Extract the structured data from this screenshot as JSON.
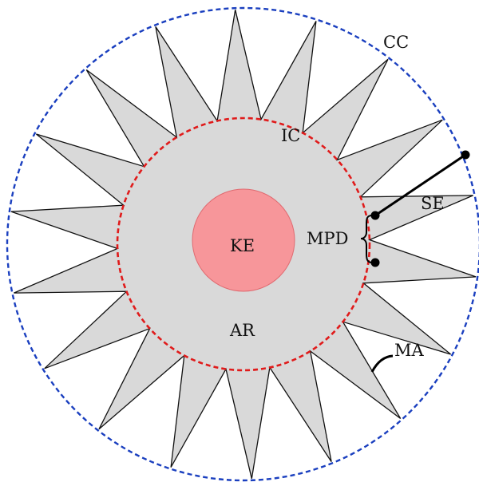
{
  "diagram": {
    "star": {
      "points": 18,
      "fill": "#d9d9d9",
      "stroke": "#111111"
    },
    "circumscribed_circle": {
      "label": "CC",
      "color": "#1a3fbf",
      "style": "dashed"
    },
    "inscribed_circle": {
      "label": "IC",
      "color": "#e01b1b",
      "style": "dashed"
    },
    "kernel": {
      "label": "KE",
      "fill": "#f7969a",
      "stroke": "#e06a70"
    },
    "labels": {
      "area": "AR",
      "spike_edge": "SE",
      "min_point_distance": "MPD",
      "min_angle": "MA"
    }
  }
}
